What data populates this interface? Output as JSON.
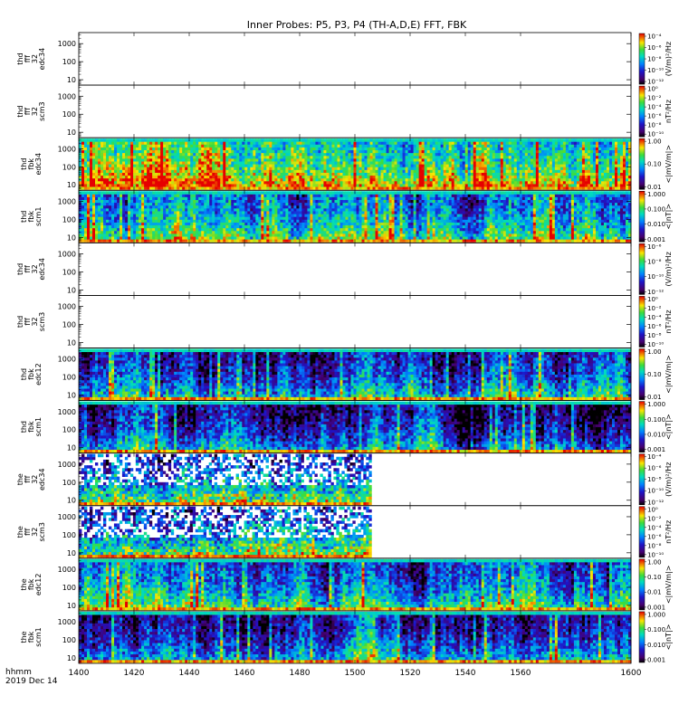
{
  "title": "Inner Probes: P5, P3, P4 (TH-A,D,E) FFT, FBK",
  "footer": {
    "time_label": "hhmm",
    "date_label": "2019 Dec 14"
  },
  "chart_data": {
    "type": "heatmap",
    "x_axis": {
      "range": [
        1400,
        1600
      ],
      "ticks": [
        "1400",
        "1420",
        "1440",
        "1460",
        "1480",
        "1500",
        "1520",
        "1540",
        "1560",
        "1600"
      ]
    },
    "y_ticks_fft": [
      "10",
      "100",
      "1000"
    ],
    "y_ticks_fbk": [
      "10",
      "100",
      "1000"
    ],
    "panels": [
      {
        "ylabel": [
          "thd",
          "fff",
          "32",
          "edc34"
        ],
        "kind": "fft",
        "data": "none",
        "cbar_ticks": [
          "10⁻¹²",
          "10⁻¹⁰",
          "10⁻⁸",
          "10⁻⁶",
          "10⁻⁴"
        ],
        "cbar_unit": "(V/m)²/Hz"
      },
      {
        "ylabel": [
          "thd",
          "fff",
          "32",
          "scm3"
        ],
        "kind": "fft",
        "data": "none",
        "cbar_ticks": [
          "10⁻¹⁰",
          "10⁻⁸",
          "10⁻⁶",
          "10⁻⁴",
          "10⁻²",
          "10⁰"
        ],
        "cbar_unit": "nT²/Hz"
      },
      {
        "ylabel": [
          "thd",
          "fbk",
          "edc34"
        ],
        "kind": "fbk",
        "data": "full",
        "seed": 11,
        "level": 0.55,
        "cbar_ticks": [
          "0.01",
          "0.10",
          "1.00"
        ],
        "cbar_unit": "<|mV/m|>"
      },
      {
        "ylabel": [
          "thd",
          "fbk",
          "scm1"
        ],
        "kind": "fbk",
        "data": "full",
        "seed": 23,
        "level": 0.35,
        "cbar_ticks": [
          "0.001",
          "0.010",
          "0.100",
          "1.000"
        ],
        "cbar_unit": "<|nT|>"
      },
      {
        "ylabel": [
          "thd",
          "fff",
          "32",
          "edc34"
        ],
        "kind": "fft",
        "data": "none",
        "cbar_ticks": [
          "10⁻¹²",
          "10⁻¹⁰",
          "10⁻⁸",
          "10⁻⁶"
        ],
        "cbar_unit": "(V/m)²/Hz"
      },
      {
        "ylabel": [
          "thd",
          "fff",
          "32",
          "scm3"
        ],
        "kind": "fft",
        "data": "none",
        "cbar_ticks": [
          "10⁻¹⁰",
          "10⁻⁸",
          "10⁻⁶",
          "10⁻⁴",
          "10⁻²",
          "10⁰"
        ],
        "cbar_unit": "nT²/Hz"
      },
      {
        "ylabel": [
          "thd",
          "fbk",
          "edc12"
        ],
        "kind": "fbk",
        "data": "full",
        "seed": 37,
        "level": 0.22,
        "cbar_ticks": [
          "0.01",
          "0.10",
          "1.00"
        ],
        "cbar_unit": "<|mV/m|>"
      },
      {
        "ylabel": [
          "thd",
          "fbk",
          "scm1"
        ],
        "kind": "fbk",
        "data": "full",
        "seed": 41,
        "level": 0.15,
        "cbar_ticks": [
          "0.001",
          "0.010",
          "0.100",
          "1.000"
        ],
        "cbar_unit": "<|nT|>"
      },
      {
        "ylabel": [
          "the",
          "fff",
          "32",
          "edc34"
        ],
        "kind": "fft",
        "data": "partial",
        "seed": 53,
        "level": 0.3,
        "x_end": 1506,
        "cbar_ticks": [
          "10⁻¹²",
          "10⁻¹⁰",
          "10⁻⁸",
          "10⁻⁶",
          "10⁻⁴"
        ],
        "cbar_unit": "(V/m)²/Hz"
      },
      {
        "ylabel": [
          "the",
          "fff",
          "32",
          "scm3"
        ],
        "kind": "fft",
        "data": "partial",
        "seed": 67,
        "level": 0.28,
        "x_end": 1506,
        "cbar_ticks": [
          "10⁻¹⁰",
          "10⁻⁸",
          "10⁻⁶",
          "10⁻⁴",
          "10⁻²",
          "10⁰"
        ],
        "cbar_unit": "nT²/Hz"
      },
      {
        "ylabel": [
          "the",
          "fbk",
          "edc12"
        ],
        "kind": "fbk",
        "data": "full",
        "seed": 71,
        "level": 0.3,
        "cbar_ticks": [
          "0.001",
          "0.01",
          "0.10",
          "1.00"
        ],
        "cbar_unit": "<|mV/m|>"
      },
      {
        "ylabel": [
          "the",
          "fbk",
          "scm1"
        ],
        "kind": "fbk",
        "data": "full",
        "seed": 89,
        "level": 0.15,
        "cbar_ticks": [
          "0.001",
          "0.010",
          "0.100",
          "1.000"
        ],
        "cbar_unit": "<|nT|>"
      }
    ]
  }
}
